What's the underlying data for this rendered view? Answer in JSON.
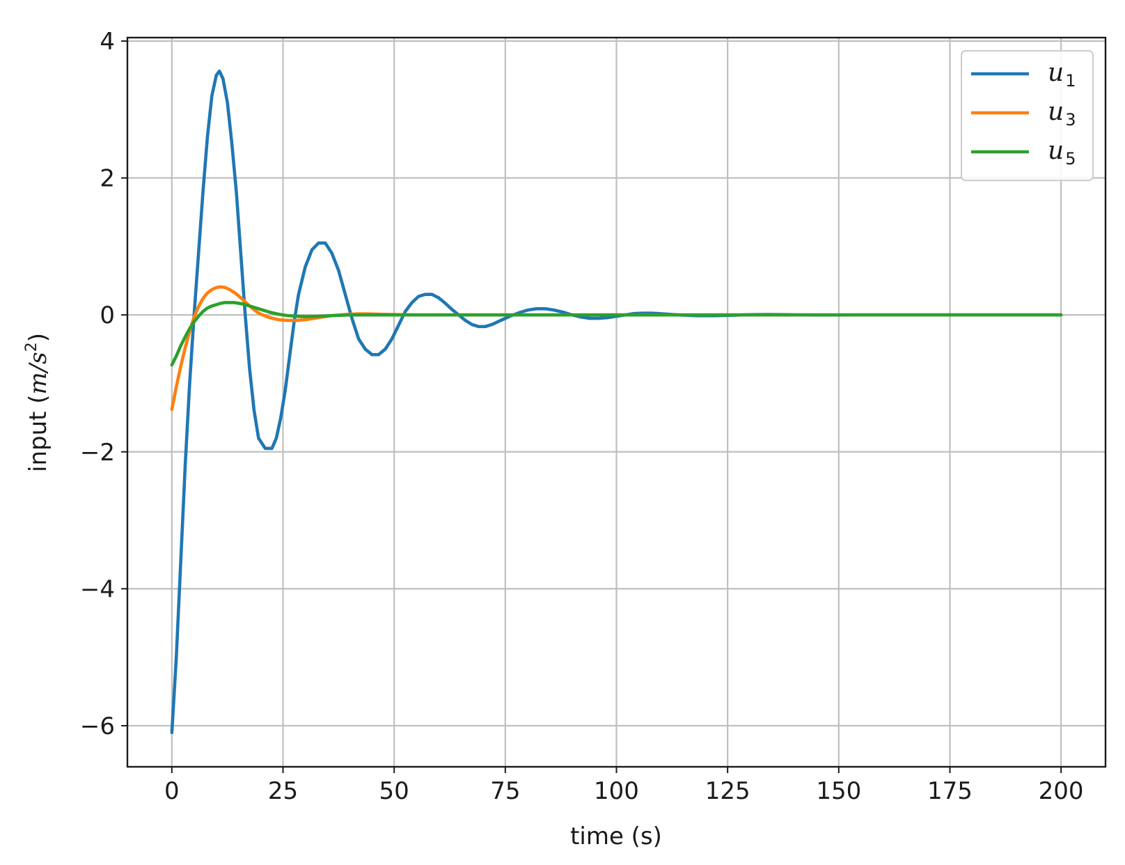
{
  "chart_data": {
    "type": "line",
    "title": "",
    "xlabel": "time (s)",
    "ylabel_parts": {
      "pre": "input (",
      "var": "m/s",
      "sup": "2",
      "post": ")"
    },
    "xlim": [
      -10,
      210
    ],
    "ylim": [
      -6.6,
      4.05
    ],
    "xticks": [
      0,
      25,
      50,
      75,
      100,
      125,
      150,
      175,
      200
    ],
    "xtick_labels": [
      "0",
      "25",
      "50",
      "75",
      "100",
      "125",
      "150",
      "175",
      "200"
    ],
    "yticks": [
      -6,
      -4,
      -2,
      0,
      2,
      4
    ],
    "ytick_labels": [
      "−6",
      "−4",
      "−2",
      "0",
      "2",
      "4"
    ],
    "grid": true,
    "legend_position": "top-right",
    "series": [
      {
        "name": "u1",
        "label_base": "u",
        "label_sub": "1",
        "color": "#1f77b4",
        "points": [
          [
            0,
            -6.1
          ],
          [
            1,
            -5.0
          ],
          [
            2,
            -3.6
          ],
          [
            3,
            -2.2
          ],
          [
            4,
            -1.0
          ],
          [
            5,
            0.0
          ],
          [
            6,
            0.9
          ],
          [
            7,
            1.8
          ],
          [
            8,
            2.6
          ],
          [
            9,
            3.2
          ],
          [
            10,
            3.5
          ],
          [
            10.7,
            3.56
          ],
          [
            11.5,
            3.45
          ],
          [
            12.5,
            3.1
          ],
          [
            13.5,
            2.5
          ],
          [
            14.5,
            1.8
          ],
          [
            15.5,
            0.9
          ],
          [
            16.5,
            0.0
          ],
          [
            17.5,
            -0.8
          ],
          [
            18.5,
            -1.4
          ],
          [
            19.5,
            -1.8
          ],
          [
            21,
            -1.95
          ],
          [
            22.5,
            -1.95
          ],
          [
            23.5,
            -1.8
          ],
          [
            24.5,
            -1.5
          ],
          [
            25.5,
            -1.1
          ],
          [
            26.5,
            -0.6
          ],
          [
            27.5,
            -0.1
          ],
          [
            28.5,
            0.3
          ],
          [
            30,
            0.7
          ],
          [
            31.5,
            0.95
          ],
          [
            33,
            1.05
          ],
          [
            34.5,
            1.05
          ],
          [
            36,
            0.9
          ],
          [
            37.5,
            0.65
          ],
          [
            39,
            0.3
          ],
          [
            40.5,
            -0.05
          ],
          [
            42,
            -0.35
          ],
          [
            43.5,
            -0.5
          ],
          [
            45,
            -0.58
          ],
          [
            46.5,
            -0.58
          ],
          [
            48,
            -0.5
          ],
          [
            49.5,
            -0.35
          ],
          [
            51,
            -0.15
          ],
          [
            52.5,
            0.05
          ],
          [
            54,
            0.18
          ],
          [
            55.5,
            0.27
          ],
          [
            57,
            0.3
          ],
          [
            58.5,
            0.3
          ],
          [
            60,
            0.25
          ],
          [
            61.5,
            0.17
          ],
          [
            63,
            0.08
          ],
          [
            64.5,
            0.0
          ],
          [
            66,
            -0.08
          ],
          [
            67.5,
            -0.14
          ],
          [
            69,
            -0.17
          ],
          [
            70.5,
            -0.17
          ],
          [
            72,
            -0.14
          ],
          [
            74,
            -0.08
          ],
          [
            76,
            -0.02
          ],
          [
            78,
            0.03
          ],
          [
            80,
            0.07
          ],
          [
            82,
            0.09
          ],
          [
            84,
            0.09
          ],
          [
            86,
            0.07
          ],
          [
            88,
            0.04
          ],
          [
            90,
            0.0
          ],
          [
            92,
            -0.03
          ],
          [
            94,
            -0.05
          ],
          [
            96,
            -0.05
          ],
          [
            98,
            -0.04
          ],
          [
            100,
            -0.02
          ],
          [
            102,
            0.0
          ],
          [
            104,
            0.02
          ],
          [
            106,
            0.025
          ],
          [
            108,
            0.025
          ],
          [
            110,
            0.018
          ],
          [
            114,
            0.0
          ],
          [
            118,
            -0.012
          ],
          [
            122,
            -0.012
          ],
          [
            126,
            -0.005
          ],
          [
            130,
            0.004
          ],
          [
            134,
            0.006
          ],
          [
            138,
            0.003
          ],
          [
            145,
            -0.002
          ],
          [
            155,
            0.0
          ],
          [
            170,
            0.0
          ],
          [
            200,
            0.0
          ]
        ]
      },
      {
        "name": "u3",
        "label_base": "u",
        "label_sub": "3",
        "color": "#ff7f0e",
        "points": [
          [
            0,
            -1.38
          ],
          [
            1,
            -1.05
          ],
          [
            2,
            -0.75
          ],
          [
            3,
            -0.48
          ],
          [
            4,
            -0.24
          ],
          [
            5,
            -0.03
          ],
          [
            6,
            0.12
          ],
          [
            7,
            0.24
          ],
          [
            8,
            0.32
          ],
          [
            9,
            0.37
          ],
          [
            10,
            0.4
          ],
          [
            11,
            0.41
          ],
          [
            12,
            0.4
          ],
          [
            13,
            0.37
          ],
          [
            14,
            0.33
          ],
          [
            15,
            0.28
          ],
          [
            16,
            0.22
          ],
          [
            17,
            0.16
          ],
          [
            18,
            0.1
          ],
          [
            19,
            0.05
          ],
          [
            20,
            0.01
          ],
          [
            22,
            -0.04
          ],
          [
            24,
            -0.07
          ],
          [
            26,
            -0.08
          ],
          [
            28,
            -0.08
          ],
          [
            30,
            -0.07
          ],
          [
            32,
            -0.05
          ],
          [
            34,
            -0.03
          ],
          [
            36,
            -0.01
          ],
          [
            38,
            0.0
          ],
          [
            40,
            0.01
          ],
          [
            42,
            0.015
          ],
          [
            44,
            0.015
          ],
          [
            47,
            0.01
          ],
          [
            50,
            0.005
          ],
          [
            55,
            0.0
          ],
          [
            60,
            0.0
          ],
          [
            80,
            0.0
          ],
          [
            200,
            0.0
          ]
        ]
      },
      {
        "name": "u5",
        "label_base": "u",
        "label_sub": "5",
        "color": "#2ca02c",
        "points": [
          [
            0,
            -0.73
          ],
          [
            1,
            -0.6
          ],
          [
            2,
            -0.45
          ],
          [
            3,
            -0.32
          ],
          [
            4,
            -0.2
          ],
          [
            5,
            -0.1
          ],
          [
            6,
            -0.02
          ],
          [
            7,
            0.05
          ],
          [
            8,
            0.1
          ],
          [
            9,
            0.13
          ],
          [
            10,
            0.15
          ],
          [
            11,
            0.17
          ],
          [
            12,
            0.18
          ],
          [
            13,
            0.18
          ],
          [
            14,
            0.18
          ],
          [
            15,
            0.17
          ],
          [
            16,
            0.16
          ],
          [
            17,
            0.14
          ],
          [
            18,
            0.12
          ],
          [
            19,
            0.1
          ],
          [
            20,
            0.08
          ],
          [
            22,
            0.04
          ],
          [
            24,
            0.01
          ],
          [
            26,
            -0.01
          ],
          [
            28,
            -0.02
          ],
          [
            30,
            -0.025
          ],
          [
            33,
            -0.02
          ],
          [
            36,
            -0.01
          ],
          [
            40,
            0.0
          ],
          [
            45,
            0.0
          ],
          [
            60,
            0.0
          ],
          [
            200,
            0.0
          ]
        ]
      }
    ]
  }
}
